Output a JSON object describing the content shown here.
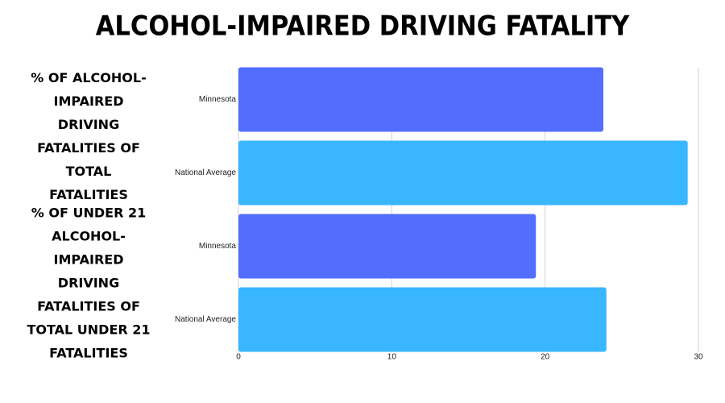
{
  "chart_data": {
    "type": "bar",
    "orientation": "horizontal",
    "title": "ALCOHOL-IMPAIRED DRIVING FATALITY",
    "groups": [
      "% OF ALCOHOL-IMPAIRED DRIVING FATALITIES OF TOTAL FATALITIES",
      "% OF UNDER 21 ALCOHOL-IMPAIRED DRIVING FATALITIES OF TOTAL UNDER 21 FATALITIES"
    ],
    "categories": [
      "Minnesota",
      "National Average",
      "Minnesota",
      "National Average"
    ],
    "values": [
      23.8,
      29.3,
      19.4,
      24.0
    ],
    "colors": [
      "#536dfe",
      "#38b6ff",
      "#536dfe",
      "#38b6ff"
    ],
    "xlim": [
      0,
      30
    ],
    "xticks": [
      0,
      10,
      20,
      30
    ],
    "grid": true
  }
}
